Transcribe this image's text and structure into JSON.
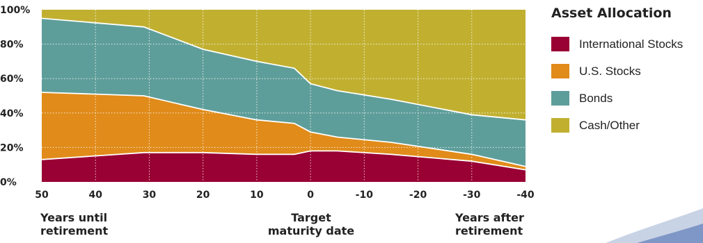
{
  "chart_data": {
    "type": "area",
    "stacked": true,
    "x_tick_labels": [
      "50",
      "40",
      "30",
      "20",
      "10",
      "0",
      "-10",
      "-20",
      "-30",
      "-40"
    ],
    "y_tick_labels": [
      "100%",
      "80%",
      "60%",
      "40%",
      "20%",
      "0%"
    ],
    "ylim": [
      0,
      100
    ],
    "x": [
      50,
      31,
      20,
      10,
      3,
      0,
      -5,
      -15,
      -30,
      -40
    ],
    "series": [
      {
        "name": "International Stocks",
        "color": "#990033",
        "values": [
          13,
          17,
          17,
          16,
          16,
          18,
          18,
          16,
          12,
          7
        ]
      },
      {
        "name": "U.S. Stocks",
        "color": "#e08b1a",
        "values": [
          39,
          33,
          25,
          20,
          18,
          11,
          8,
          7,
          4,
          2
        ]
      },
      {
        "name": "Bonds",
        "color": "#5e9e9a",
        "values": [
          43,
          40,
          35,
          34,
          32,
          28,
          27,
          25,
          23,
          27
        ]
      },
      {
        "name": "Cash/Other",
        "color": "#c1b030",
        "values": [
          5,
          10,
          23,
          30,
          34,
          43,
          47,
          52,
          61,
          64
        ]
      }
    ],
    "grid": true,
    "legend_title": "Asset Allocation",
    "legend_position": "right"
  },
  "annotations": {
    "left": [
      "Years until",
      "retirement"
    ],
    "center": [
      "Target",
      "maturity date"
    ],
    "right": [
      "Years after",
      "retirement"
    ]
  }
}
